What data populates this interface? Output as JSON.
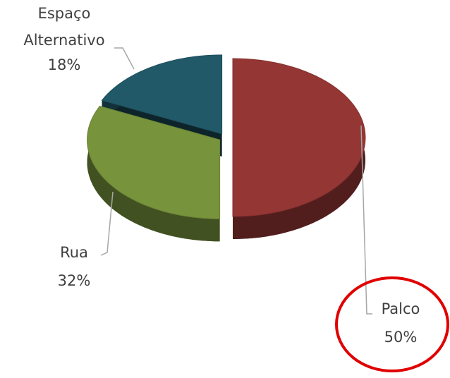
{
  "chart_data": {
    "type": "pie3d",
    "categories": [
      "Palco",
      "Rua",
      "Espaço Alternativo"
    ],
    "values": [
      50,
      32,
      18
    ],
    "value_labels": [
      "50%",
      "32%",
      "18%"
    ],
    "colors": [
      "#943634",
      "#77933c",
      "#215968"
    ]
  }
}
